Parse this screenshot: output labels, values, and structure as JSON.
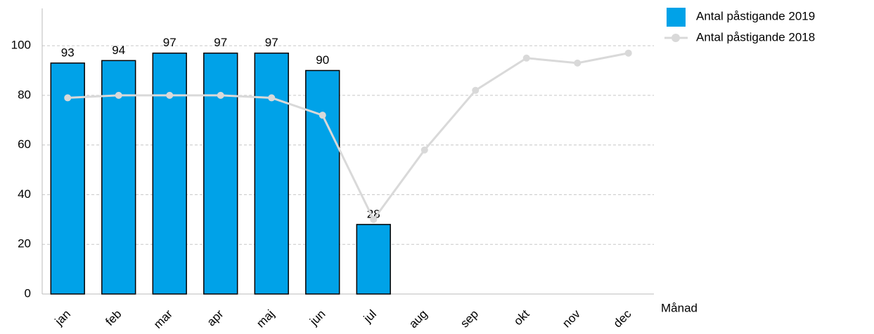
{
  "chart_data": {
    "type": "bar",
    "x_label": "Månad",
    "categories": [
      "jan",
      "feb",
      "mar",
      "apr",
      "maj",
      "jun",
      "jul",
      "aug",
      "sep",
      "okt",
      "nov",
      "dec"
    ],
    "series": [
      {
        "name": "Antal påstigande 2019",
        "type": "bar",
        "color": "#00a2e8",
        "values": [
          93,
          94,
          97,
          97,
          97,
          90,
          28,
          null,
          null,
          null,
          null,
          null
        ]
      },
      {
        "name": "Antal påstigande 2018",
        "type": "line",
        "color": "#d9d9d9",
        "values": [
          79,
          80,
          80,
          80,
          79,
          72,
          30,
          58,
          82,
          95,
          93,
          97
        ]
      }
    ],
    "ylim": [
      0,
      115
    ],
    "yticks": [
      0,
      20,
      40,
      60,
      80,
      100
    ],
    "grid": true,
    "legend": "top-right"
  }
}
